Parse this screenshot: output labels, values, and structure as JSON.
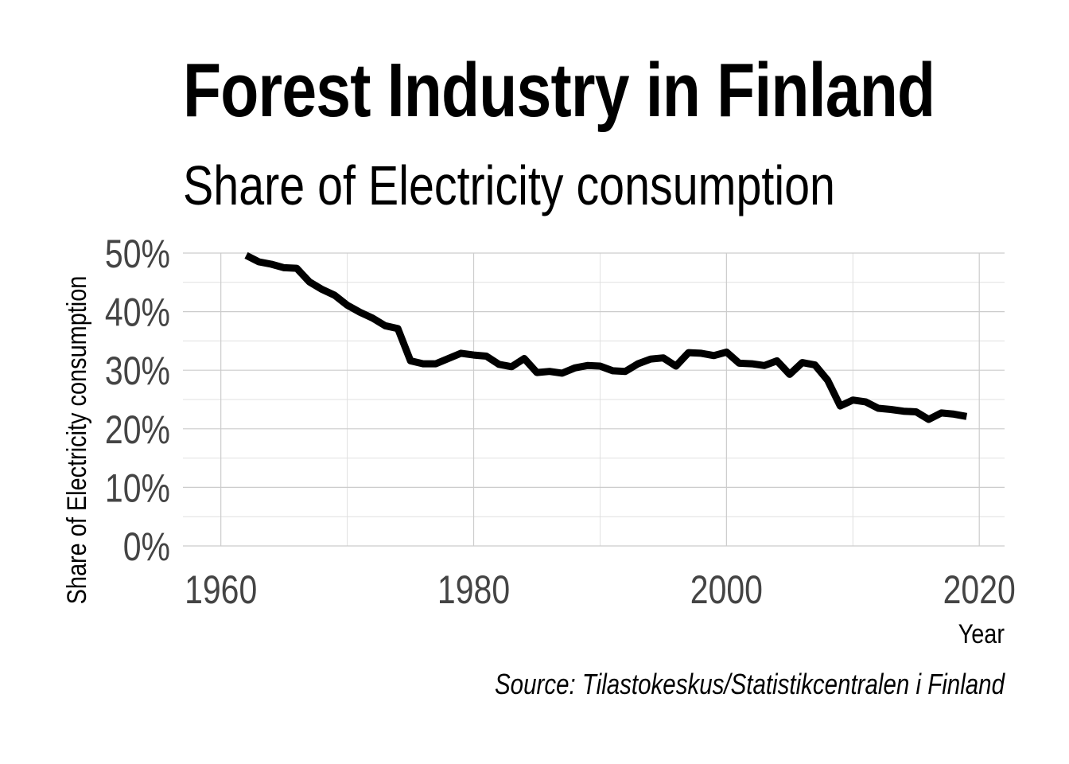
{
  "chart_data": {
    "type": "line",
    "title": "Forest Industry in Finland",
    "subtitle": "Share of Electricity consumption",
    "xlabel": "Year",
    "ylabel": "Share of Electricity consumption",
    "caption": "Source: Tilastokeskus/Statistikcentralen i Finland",
    "xlim": [
      1957,
      2022
    ],
    "ylim": [
      0,
      50
    ],
    "x_ticks": [
      1960,
      1980,
      2000,
      2020
    ],
    "x_tick_labels": [
      "1960",
      "1980",
      "2000",
      "2020"
    ],
    "y_ticks": [
      0,
      10,
      20,
      30,
      40,
      50
    ],
    "y_tick_labels": [
      "0%",
      "10%",
      "20%",
      "30%",
      "40%",
      "50%"
    ],
    "grid": true,
    "legend": "none",
    "line_color": "#000000",
    "x": [
      1962,
      1963,
      1964,
      1965,
      1966,
      1967,
      1968,
      1969,
      1970,
      1971,
      1972,
      1973,
      1974,
      1975,
      1976,
      1977,
      1978,
      1979,
      1980,
      1981,
      1982,
      1983,
      1984,
      1985,
      1986,
      1987,
      1988,
      1989,
      1990,
      1991,
      1992,
      1993,
      1994,
      1995,
      1996,
      1997,
      1998,
      1999,
      2000,
      2001,
      2002,
      2003,
      2004,
      2005,
      2006,
      2007,
      2008,
      2009,
      2010,
      2011,
      2012,
      2013,
      2014,
      2015,
      2016,
      2017,
      2018,
      2019
    ],
    "y": [
      49.6,
      48.5,
      48.1,
      47.5,
      47.4,
      45.1,
      43.8,
      42.8,
      41.1,
      39.9,
      38.9,
      37.6,
      37.1,
      31.6,
      31.1,
      31.1,
      32.0,
      32.9,
      32.6,
      32.4,
      31.0,
      30.6,
      32.0,
      29.6,
      29.8,
      29.5,
      30.4,
      30.8,
      30.7,
      29.9,
      29.8,
      31.1,
      31.9,
      32.1,
      30.7,
      33.0,
      32.9,
      32.5,
      33.1,
      31.2,
      31.1,
      30.8,
      31.6,
      29.3,
      31.3,
      30.9,
      28.3,
      23.9,
      24.9,
      24.6,
      23.5,
      23.3,
      23.0,
      22.9,
      21.6,
      22.7,
      22.5,
      22.1
    ]
  }
}
